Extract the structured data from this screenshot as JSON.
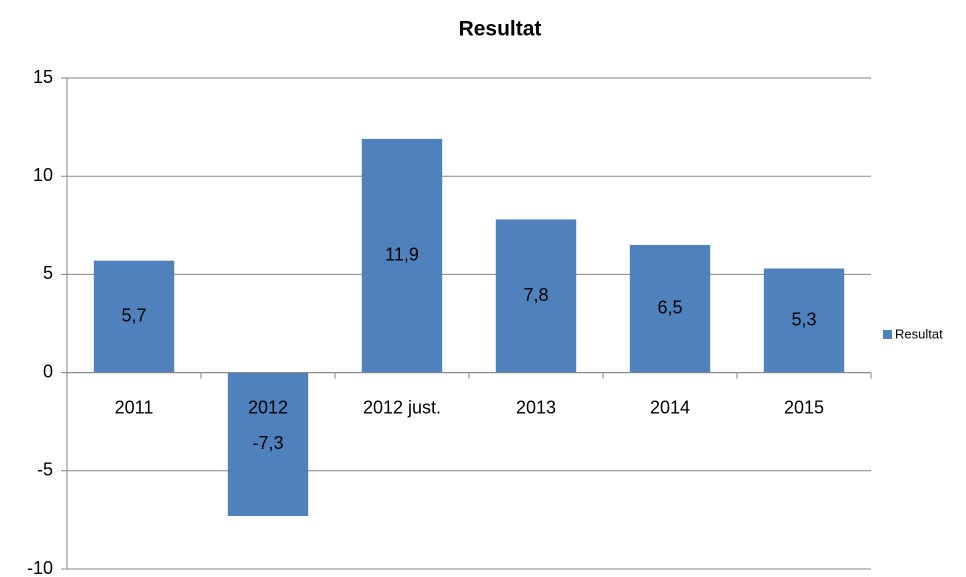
{
  "chart_data": {
    "type": "bar",
    "title": "Resultat",
    "categories": [
      "2011",
      "2012",
      "2012 just.",
      "2013",
      "2014",
      "2015"
    ],
    "series": [
      {
        "name": "Resultat",
        "color": "#4f81bd",
        "values": [
          5.7,
          -7.3,
          11.9,
          7.8,
          6.5,
          5.3
        ],
        "value_labels": [
          "5,7",
          "-7,3",
          "11,9",
          "7,8",
          "6,5",
          "5,3"
        ]
      }
    ],
    "ylim": [
      -10,
      15
    ],
    "yticks": [
      -10,
      -5,
      0,
      5,
      10,
      15
    ],
    "grid": true,
    "legend": "right"
  }
}
